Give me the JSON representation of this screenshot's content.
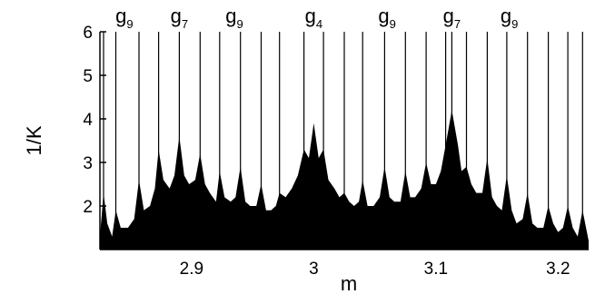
{
  "chart_data": {
    "type": "area",
    "title": "",
    "xlabel": "m",
    "ylabel": "1/K",
    "xlim": [
      2.825,
      3.225
    ],
    "ylim": [
      1.0,
      6.0
    ],
    "x_ticks": [
      2.9,
      3.0,
      3.1,
      3.2
    ],
    "x_tick_labels": [
      "2.9",
      "3",
      "3.1",
      "3.2"
    ],
    "y_ticks": [
      2,
      3,
      4,
      5,
      6
    ],
    "y_tick_labels": [
      "2",
      "3",
      "4",
      "5",
      "6"
    ],
    "grid": false,
    "fill_color": "#000000",
    "resonance_labels": [
      {
        "x": 2.845,
        "base": "g",
        "sub": "9"
      },
      {
        "x": 2.89,
        "base": "g",
        "sub": "7"
      },
      {
        "x": 2.935,
        "base": "g",
        "sub": "9"
      },
      {
        "x": 3.0,
        "base": "g",
        "sub": "4"
      },
      {
        "x": 3.06,
        "base": "g",
        "sub": "9"
      },
      {
        "x": 3.113,
        "base": "g",
        "sub": "7"
      },
      {
        "x": 3.16,
        "base": "g",
        "sub": "9"
      }
    ],
    "resonance_lines": [
      2.828,
      2.838,
      2.857,
      2.873,
      2.89,
      2.907,
      2.923,
      2.94,
      2.957,
      2.972,
      2.992,
      3.008,
      3.025,
      3.04,
      3.058,
      3.075,
      3.092,
      3.108,
      3.113,
      3.125,
      3.142,
      3.158,
      3.175,
      3.192,
      3.208,
      3.22
    ],
    "envelope": {
      "x": [
        2.825,
        2.828,
        2.831,
        2.835,
        2.838,
        2.842,
        2.848,
        2.853,
        2.857,
        2.861,
        2.866,
        2.87,
        2.873,
        2.877,
        2.882,
        2.886,
        2.89,
        2.894,
        2.898,
        2.903,
        2.907,
        2.911,
        2.915,
        2.92,
        2.923,
        2.927,
        2.932,
        2.936,
        2.94,
        2.944,
        2.948,
        2.953,
        2.957,
        2.961,
        2.965,
        2.969,
        2.972,
        2.977,
        2.982,
        2.987,
        2.992,
        2.996,
        3.0,
        3.004,
        3.008,
        3.012,
        3.017,
        3.021,
        3.025,
        3.029,
        3.033,
        3.037,
        3.04,
        3.044,
        3.049,
        3.054,
        3.058,
        3.062,
        3.066,
        3.071,
        3.075,
        3.079,
        3.083,
        3.088,
        3.092,
        3.096,
        3.1,
        3.104,
        3.108,
        3.113,
        3.118,
        3.121,
        3.125,
        3.129,
        3.133,
        3.138,
        3.142,
        3.146,
        3.15,
        3.154,
        3.158,
        3.162,
        3.166,
        3.171,
        3.175,
        3.179,
        3.183,
        3.188,
        3.192,
        3.196,
        3.2,
        3.204,
        3.208,
        3.212,
        3.216,
        3.22,
        3.225
      ],
      "y": [
        1.3,
        2.3,
        1.6,
        1.3,
        1.9,
        1.5,
        1.5,
        1.7,
        2.6,
        1.9,
        2.0,
        2.4,
        3.3,
        2.6,
        2.4,
        2.7,
        3.6,
        2.7,
        2.5,
        2.6,
        3.2,
        2.5,
        2.3,
        2.1,
        2.8,
        2.2,
        2.1,
        2.2,
        2.9,
        2.1,
        2.0,
        2.0,
        2.5,
        1.9,
        1.9,
        2.0,
        2.3,
        2.2,
        2.4,
        2.7,
        3.3,
        3.1,
        3.9,
        3.1,
        3.3,
        2.6,
        2.4,
        2.2,
        2.3,
        2.1,
        2.0,
        2.1,
        2.6,
        2.0,
        2.0,
        2.2,
        2.9,
        2.2,
        2.1,
        2.1,
        2.8,
        2.2,
        2.2,
        2.4,
        3.0,
        2.5,
        2.5,
        2.8,
        3.4,
        4.2,
        3.4,
        2.8,
        2.9,
        2.5,
        2.3,
        2.3,
        3.1,
        2.2,
        2.0,
        1.9,
        2.7,
        1.9,
        1.6,
        1.7,
        2.3,
        1.6,
        1.5,
        1.5,
        2.0,
        1.6,
        1.4,
        1.5,
        2.0,
        1.5,
        1.3,
        1.9,
        1.2
      ]
    }
  }
}
